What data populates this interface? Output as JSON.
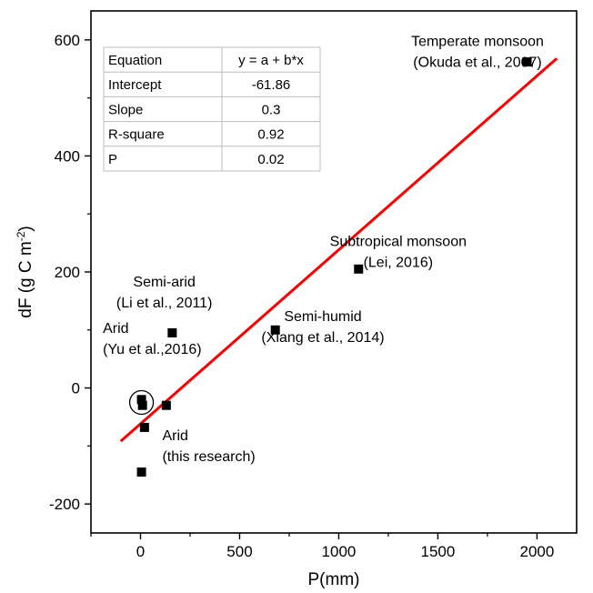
{
  "chart_data": {
    "type": "scatter",
    "xlabel": "P(mm)",
    "ylabel_main": "dF (g C m",
    "ylabel_sup": "-2",
    "ylabel_close": ")",
    "xlim": [
      -250,
      2200
    ],
    "ylim": [
      -250,
      650
    ],
    "xticks": [
      0,
      500,
      1000,
      1500,
      2000
    ],
    "yticks": [
      -200,
      0,
      200,
      400,
      600
    ],
    "points": [
      {
        "x": 5,
        "y": -20
      },
      {
        "x": 10,
        "y": -30
      },
      {
        "x": 20,
        "y": -68
      },
      {
        "x": 5,
        "y": -145
      },
      {
        "x": 130,
        "y": -30
      },
      {
        "x": 160,
        "y": 95
      },
      {
        "x": 680,
        "y": 100
      },
      {
        "x": 1100,
        "y": 205
      },
      {
        "x": 1950,
        "y": 562
      }
    ],
    "fit_line": {
      "x": [
        -100,
        2100
      ],
      "intercept": -61.86,
      "slope": 0.3,
      "color": "#ff0000"
    },
    "highlight_circle": {
      "x": 5,
      "y": -25
    },
    "marker_color": "#000000",
    "annotations": [
      {
        "lines": [
          "Temperate monsoon",
          "(Okuda et al., 2007)"
        ],
        "x": 1700,
        "y": 590,
        "anchor": "middle"
      },
      {
        "lines": [
          "Subtropical monsoon",
          "(Lei, 2016)"
        ],
        "x": 1300,
        "y": 245,
        "anchor": "middle"
      },
      {
        "lines": [
          "Semi-arid",
          "(Li et al., 2011)"
        ],
        "x": 120,
        "y": 175,
        "anchor": "middle"
      },
      {
        "lines": [
          "Semi-humid",
          "(Xiang et al., 2014)"
        ],
        "x": 920,
        "y": 115,
        "anchor": "middle"
      },
      {
        "lines": [
          "Arid",
          "(Yu et al.,2016)"
        ],
        "x": -190,
        "y": 95,
        "anchor": "start"
      },
      {
        "lines": [
          "Arid",
          "(this research)"
        ],
        "x": 110,
        "y": -90,
        "anchor": "start"
      }
    ],
    "stats_table": [
      [
        "Equation",
        "y = a + b*x"
      ],
      [
        "Intercept",
        "-61.86"
      ],
      [
        "Slope",
        "0.3"
      ],
      [
        "R-square",
        "0.92"
      ],
      [
        "P",
        "0.02"
      ]
    ]
  }
}
